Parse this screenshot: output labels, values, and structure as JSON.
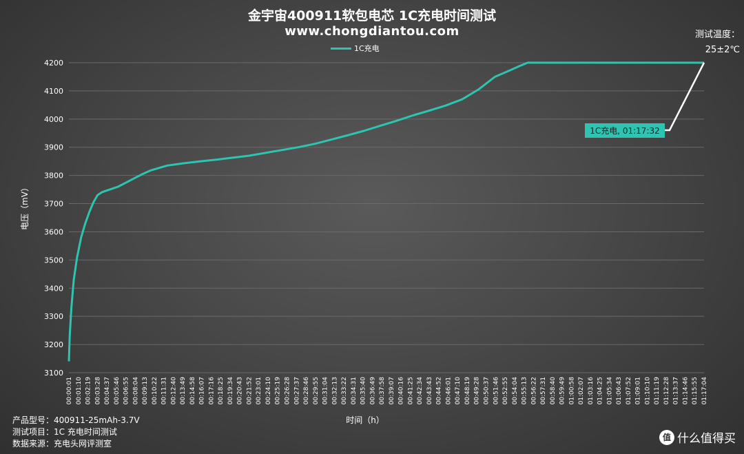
{
  "title": "金宇宙400911软包电芯 1C充电时间测试",
  "subtitle": "www.chongdiantou.com",
  "temperature": {
    "label": "测试温度：",
    "value": "25±2℃"
  },
  "info": [
    {
      "label": "产品型号：",
      "value": "400911-25mAh-3.7V"
    },
    {
      "label": "测试项目：",
      "value": "1C 充电时间测试"
    },
    {
      "label": "数据来源：",
      "value": "充电头网评测室"
    }
  ],
  "brand": {
    "icon": "zhi-icon",
    "text": "什么值得买"
  },
  "colors": {
    "series": "#2ec4b2",
    "leader": "#ffffff",
    "grid": "#6a6a6a"
  },
  "chart_data": {
    "type": "line",
    "xlabel": "时间（h）",
    "ylabel": "电压（mV）",
    "ylim": [
      3100,
      4200
    ],
    "yticks": [
      3100,
      3200,
      3300,
      3400,
      3500,
      3600,
      3700,
      3800,
      3900,
      4000,
      4100,
      4200
    ],
    "grid": true,
    "legend_position": "top-center",
    "xtick_labels": [
      "00:00:01",
      "00:01:10",
      "00:02:19",
      "00:03:28",
      "00:04:37",
      "00:05:46",
      "00:06:55",
      "00:08:04",
      "00:09:13",
      "00:10:22",
      "00:11:31",
      "00:12:40",
      "00:13:49",
      "00:14:58",
      "00:16:07",
      "00:17:16",
      "00:18:25",
      "00:19:34",
      "00:20:43",
      "00:21:52",
      "00:23:01",
      "00:24:10",
      "00:25:19",
      "00:26:28",
      "00:27:37",
      "00:28:46",
      "00:29:55",
      "00:31:04",
      "00:32:13",
      "00:33:22",
      "00:34:31",
      "00:35:40",
      "00:36:49",
      "00:37:58",
      "00:39:07",
      "00:40:16",
      "00:41:25",
      "00:42:34",
      "00:43:43",
      "00:44:52",
      "00:46:01",
      "00:47:10",
      "00:48:19",
      "00:49:28",
      "00:50:37",
      "00:51:46",
      "00:52:55",
      "00:54:04",
      "00:55:13",
      "00:56:22",
      "00:57:31",
      "00:58:40",
      "00:59:49",
      "01:00:58",
      "01:02:07",
      "01:03:16",
      "01:04:25",
      "01:05:34",
      "01:06:43",
      "01:07:52",
      "01:09:01",
      "01:10:10",
      "01:11:19",
      "01:12:28",
      "01:13:37",
      "01:14:46",
      "01:15:55",
      "01:17:04"
    ],
    "series": [
      {
        "name": "1C充电",
        "x_min": [
          0,
          0.1,
          0.3,
          0.6,
          1.0,
          1.5,
          2.0,
          2.5,
          3.0,
          3.5,
          4.0,
          4.5,
          5,
          6,
          7,
          8,
          9,
          10,
          12,
          14,
          16,
          18,
          20,
          22,
          24,
          26,
          28,
          30,
          32,
          34,
          36,
          38,
          40,
          42,
          44,
          46,
          48,
          50,
          52,
          54,
          55,
          56,
          57,
          58,
          59,
          60,
          61,
          62,
          65,
          70,
          75,
          77.53
        ],
        "y": [
          3140,
          3230,
          3330,
          3430,
          3510,
          3580,
          3630,
          3670,
          3705,
          3730,
          3740,
          3745,
          3750,
          3760,
          3775,
          3790,
          3805,
          3818,
          3835,
          3843,
          3850,
          3856,
          3863,
          3870,
          3880,
          3890,
          3900,
          3912,
          3927,
          3942,
          3958,
          3976,
          3994,
          4013,
          4030,
          4048,
          4070,
          4105,
          4150,
          4175,
          4188,
          4200,
          4200,
          4200,
          4200,
          4200,
          4200,
          4200,
          4200,
          4200,
          4200,
          4200
        ]
      }
    ],
    "annotations": [
      {
        "text": "1C充电, 01:17:32",
        "x_min": 77.53,
        "y": 4200
      }
    ]
  },
  "chart_text": {
    "legend_label": "1C充电",
    "annotation_label": "1C充电, 01:17:32"
  }
}
